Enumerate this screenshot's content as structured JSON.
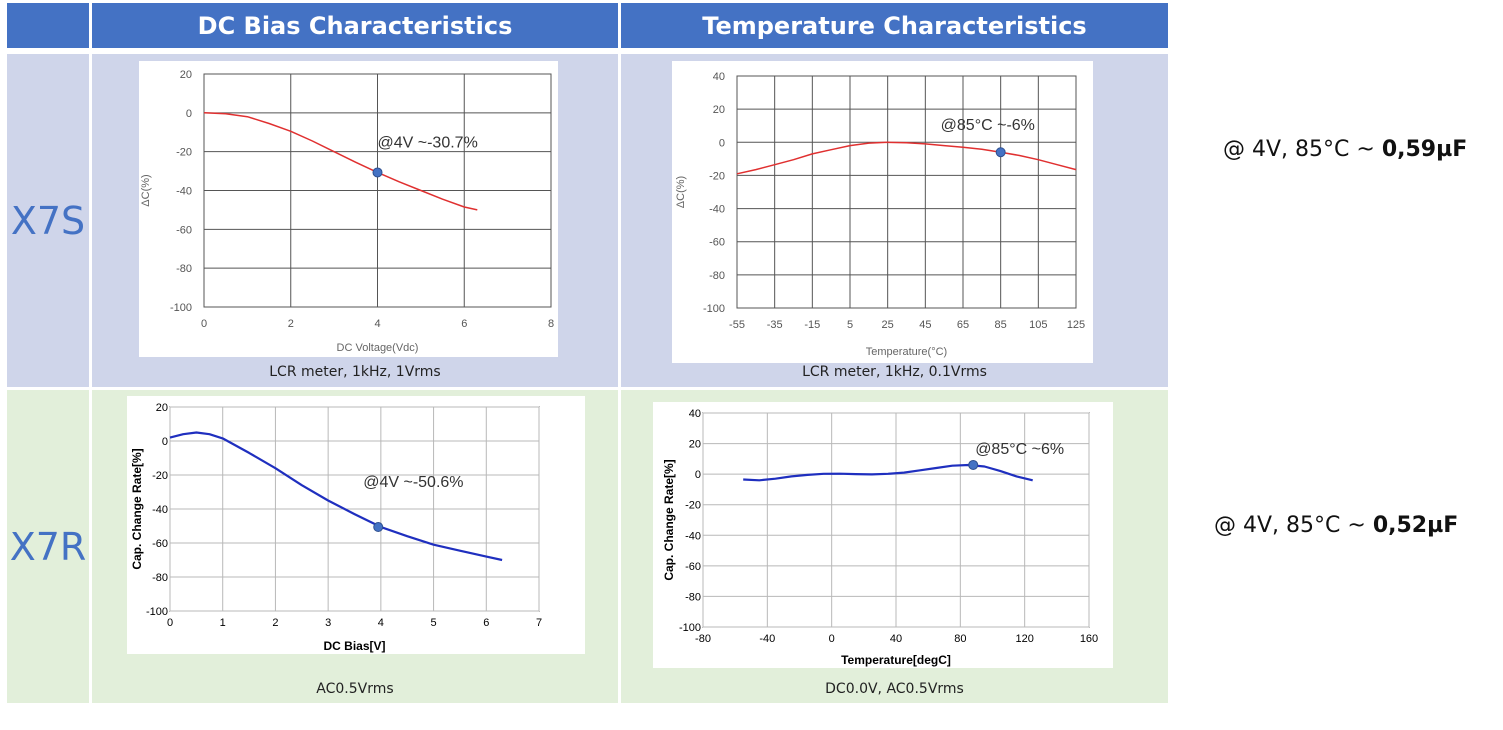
{
  "headers": {
    "dc_bias": "DC Bias Characteristics",
    "temperature": "Temperature Characteristics"
  },
  "rows": {
    "x7s": {
      "label": "X7S",
      "dc_caption": "LCR meter, 1kHz, 1Vrms",
      "temp_caption": "LCR meter, 1kHz, 0.1Vrms",
      "summary_prefix": "@ 4V, 85°C ~ ",
      "summary_value": "0,59µF"
    },
    "x7r": {
      "label": "X7R",
      "dc_caption": "AC0.5Vrms",
      "temp_caption": "DC0.0V, AC0.5Vrms",
      "summary_prefix": "@ 4V, 85°C ~ ",
      "summary_value": "0,52µF"
    }
  },
  "chart_data": [
    {
      "id": "x7s_dc",
      "type": "line",
      "xlabel": "DC Voltage(Vdc)",
      "ylabel": "ΔC(%)",
      "xlim": [
        0,
        8
      ],
      "ylim": [
        -100,
        20
      ],
      "xticks": [
        0,
        2,
        4,
        6,
        8
      ],
      "yticks": [
        20,
        0,
        -20,
        -40,
        -60,
        -80,
        -100
      ],
      "series": [
        {
          "color": "#e03030",
          "x": [
            0,
            0.5,
            1,
            1.5,
            2,
            2.5,
            3,
            3.5,
            4,
            4.5,
            5,
            5.5,
            6,
            6.3
          ],
          "y": [
            0,
            -0.5,
            -2,
            -5.5,
            -9.5,
            -14.5,
            -20,
            -25.5,
            -30.7,
            -35.5,
            -40,
            -44.5,
            -48.5,
            -50
          ]
        }
      ],
      "annotation": {
        "x": 4,
        "y": -30.7,
        "text": "@4V ~-30.7%"
      }
    },
    {
      "id": "x7s_temp",
      "type": "line",
      "xlabel": "Temperature(°C)",
      "ylabel": "ΔC(%)",
      "xlim": [
        -55,
        125
      ],
      "ylim": [
        -100,
        40
      ],
      "xticks": [
        -55,
        -35,
        -15,
        5,
        25,
        45,
        65,
        85,
        105,
        125
      ],
      "yticks": [
        40,
        20,
        0,
        -20,
        -40,
        -60,
        -80,
        -100
      ],
      "series": [
        {
          "color": "#e03030",
          "x": [
            -55,
            -45,
            -35,
            -25,
            -15,
            -5,
            5,
            15,
            25,
            35,
            45,
            55,
            65,
            75,
            85,
            95,
            105,
            115,
            125
          ],
          "y": [
            -19,
            -16.5,
            -13.5,
            -10.5,
            -7,
            -4.5,
            -2,
            -0.5,
            0,
            -0.3,
            -1,
            -2,
            -3,
            -4.2,
            -6,
            -8,
            -10.5,
            -13.5,
            -16.5
          ]
        }
      ],
      "annotation": {
        "x": 85,
        "y": -6,
        "text": "@85°C ~-6%"
      }
    },
    {
      "id": "x7r_dc",
      "type": "line",
      "xlabel": "DC Bias[V]",
      "ylabel": "Cap. Change Rate[%]",
      "xlim": [
        0,
        7
      ],
      "ylim": [
        -100,
        20
      ],
      "xticks": [
        0,
        1,
        2,
        3,
        4,
        5,
        6,
        7
      ],
      "yticks": [
        20,
        0,
        -20,
        -40,
        -60,
        -80,
        -100
      ],
      "series": [
        {
          "color": "#1f2fbf",
          "x": [
            0,
            0.25,
            0.5,
            0.75,
            1,
            1.5,
            2,
            2.5,
            3,
            3.5,
            4,
            4.5,
            5,
            5.5,
            6,
            6.3
          ],
          "y": [
            2,
            4,
            5,
            4,
            1.5,
            -7,
            -16,
            -26,
            -35,
            -43,
            -50.6,
            -56,
            -61,
            -64.5,
            -68,
            -70
          ]
        }
      ],
      "annotation": {
        "x": 3.95,
        "y": -50.6,
        "text": "@4V ~-50.6%"
      }
    },
    {
      "id": "x7r_temp",
      "type": "line",
      "xlabel": "Temperature[degC]",
      "ylabel": "Cap. Change Rate[%]",
      "xlim": [
        -80,
        160
      ],
      "ylim": [
        -100,
        40
      ],
      "xticks": [
        -80,
        -40,
        0,
        40,
        80,
        120,
        160
      ],
      "yticks": [
        40,
        20,
        0,
        -20,
        -40,
        -60,
        -80,
        -100
      ],
      "series": [
        {
          "color": "#1f2fbf",
          "x": [
            -55,
            -45,
            -35,
            -25,
            -15,
            -5,
            5,
            15,
            25,
            35,
            45,
            55,
            65,
            75,
            85,
            95,
            105,
            115,
            125
          ],
          "y": [
            -3.5,
            -4,
            -3,
            -1.5,
            -0.5,
            0.2,
            0.3,
            0,
            -0.2,
            0.2,
            1,
            2.5,
            4,
            5.5,
            6,
            5,
            2,
            -1.5,
            -4
          ]
        }
      ],
      "annotation": {
        "x": 88,
        "y": 6,
        "text": "@85°C ~6%"
      }
    }
  ]
}
